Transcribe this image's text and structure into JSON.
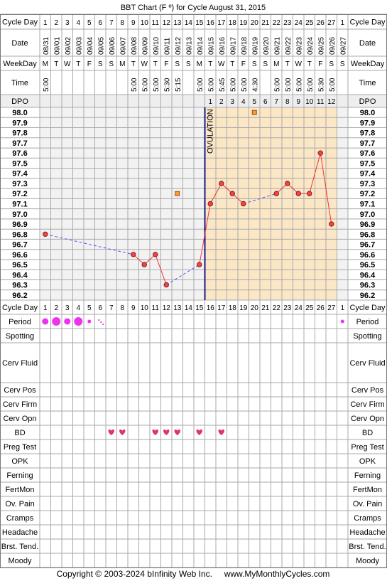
{
  "title": "BBT Chart (F º) for Cycle August 31, 2015",
  "copyright": "Copyright © 2003-2024 bInfinity Web Inc.     www.MyMonthlyCycles.com",
  "row_labels": {
    "cycle_day": "Cycle Day",
    "date": "Date",
    "weekday": "WeekDay",
    "time": "Time",
    "dpo": "DPO",
    "period": "Period",
    "spotting": "Spotting",
    "cerv_fluid": "Cerv Fluid",
    "cerv_pos": "Cerv Pos",
    "cerv_firm": "Cerv Firm",
    "cerv_opn": "Cerv Opn",
    "bd": "BD",
    "preg_test": "Preg Test",
    "opk": "OPK",
    "ferning": "Ferning",
    "fertmon": "FertMon",
    "ov_pain": "Ov. Pain",
    "cramps": "Cramps",
    "headache": "Headache",
    "brst_tend": "Brst. Tend.",
    "moody": "Moody"
  },
  "ovulation_label": "OVULATION",
  "colors": {
    "grid": "#a9a9a9",
    "pre_ovulation_bg": "#f2f2f2",
    "post_ovulation_bg": "#fbe7c6",
    "line": "#ee3333",
    "point_fill": "#ee4444",
    "ovulation_line": "#1a1a8c",
    "dashed": "#5555ee",
    "period": "#ee33ee",
    "heart": "#dd3377",
    "excluded_point": "#ff9933"
  },
  "chart_data": {
    "type": "line",
    "cycle_days": [
      "1",
      "2",
      "3",
      "4",
      "5",
      "6",
      "7",
      "8",
      "9",
      "10",
      "11",
      "12",
      "13",
      "14",
      "15",
      "16",
      "17",
      "18",
      "19",
      "20",
      "21",
      "22",
      "23",
      "24",
      "25",
      "26",
      "27",
      "1"
    ],
    "dates": [
      "08/31",
      "09/01",
      "09/02",
      "09/03",
      "09/04",
      "09/05",
      "09/06",
      "09/07",
      "09/08",
      "09/09",
      "09/10",
      "09/11",
      "09/12",
      "09/13",
      "09/14",
      "09/15",
      "09/16",
      "09/17",
      "09/18",
      "09/19",
      "09/20",
      "09/21",
      "09/22",
      "09/23",
      "09/24",
      "09/25",
      "09/26",
      "09/27"
    ],
    "weekdays": [
      "M",
      "T",
      "W",
      "T",
      "F",
      "S",
      "S",
      "M",
      "T",
      "W",
      "T",
      "F",
      "S",
      "S",
      "M",
      "T",
      "W",
      "T",
      "F",
      "S",
      "S",
      "M",
      "T",
      "W",
      "T",
      "F",
      "S",
      "S"
    ],
    "times": [
      "5:00",
      "",
      "",
      "",
      "",
      "",
      "",
      "",
      "5:00",
      "5:00",
      "5:00",
      "5:30",
      "5:15",
      "",
      "5:00",
      "5:00",
      "5:45",
      "5:00",
      "5:00",
      "4:30",
      "",
      "5:00",
      "5:00",
      "5:00",
      "5:00",
      "5:30",
      "5:00",
      ""
    ],
    "dpo": [
      "",
      "",
      "",
      "",
      "",
      "",
      "",
      "",
      "",
      "",
      "",
      "",
      "",
      "",
      "",
      "1",
      "2",
      "3",
      "4",
      "5",
      "6",
      "7",
      "8",
      "9",
      "10",
      "11",
      "12",
      ""
    ],
    "temperatures": [
      96.8,
      null,
      null,
      null,
      null,
      null,
      null,
      null,
      96.6,
      96.5,
      96.6,
      96.3,
      null,
      null,
      96.5,
      97.1,
      97.3,
      97.2,
      97.1,
      null,
      null,
      97.2,
      97.3,
      97.2,
      97.2,
      97.6,
      96.9,
      null
    ],
    "excluded_temperatures": [
      null,
      null,
      null,
      null,
      null,
      null,
      null,
      null,
      null,
      null,
      null,
      null,
      97.2,
      null,
      null,
      null,
      null,
      null,
      null,
      98.0,
      null,
      null,
      null,
      null,
      null,
      null,
      null,
      null
    ],
    "ylim": [
      96.2,
      98.0
    ],
    "y_ticks": [
      "98.0",
      "97.9",
      "97.8",
      "97.7",
      "97.6",
      "97.5",
      "97.4",
      "97.3",
      "97.2",
      "97.1",
      "97.0",
      "96.9",
      "96.8",
      "96.7",
      "96.6",
      "96.5",
      "96.4",
      "96.3",
      "96.2"
    ],
    "ovulation_day_index": 14,
    "period": [
      "medium",
      "heavy",
      "medium",
      "heavy",
      "light",
      "spotting",
      "",
      "",
      "",
      "",
      "",
      "",
      "",
      "",
      "",
      "",
      "",
      "",
      "",
      "",
      "",
      "",
      "",
      "",
      "",
      "",
      "",
      "light"
    ],
    "bd": [
      false,
      false,
      false,
      false,
      false,
      false,
      true,
      true,
      false,
      false,
      true,
      true,
      true,
      false,
      true,
      false,
      true,
      false,
      false,
      false,
      false,
      false,
      false,
      false,
      false,
      false,
      false,
      false
    ]
  }
}
